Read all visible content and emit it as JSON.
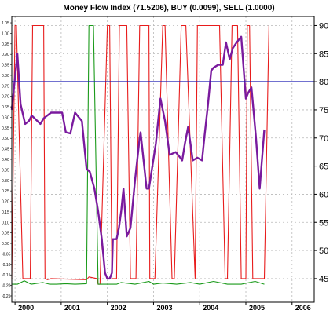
{
  "chart_data": {
    "type": "line",
    "title": "Money Flow Index (71.5206), BUY (0.0099), SELL (1.0000)",
    "xlabel": "",
    "ylabel": "",
    "x_ticks": [
      "2000",
      "2001",
      "2002",
      "2003",
      "2004",
      "2005",
      "2006"
    ],
    "x_range": [
      1999.93,
      2006.48
    ],
    "y_right": {
      "range": [
        40.8,
        91.6
      ],
      "ticks": [
        45,
        50,
        55,
        60,
        65,
        70,
        75,
        80,
        85,
        90
      ]
    },
    "y_left": {
      "range": [
        -0.28,
        1.08
      ],
      "ticks": [
        "1.05",
        "1.00",
        "0.95",
        "0.90",
        "0.85",
        "0.80",
        "0.75",
        "0.70",
        "0.65",
        "0.60",
        "0.55",
        "0.50",
        "0.45",
        "0.40",
        "0.35",
        "0.30",
        "0.25",
        "0.20",
        "0.15",
        "0.10",
        "0.05",
        "0.00",
        "-0.05",
        "-0.10",
        "-0.15",
        "-0.20",
        "-0.25"
      ]
    },
    "reference_line": {
      "value": 80,
      "axis": "right",
      "color": "#1c1cb4"
    },
    "grid": true,
    "series": [
      {
        "axis": "right",
        "color": "#e81c1c",
        "x": [
          1999.93,
          2000.0,
          2000.03,
          2000.17,
          2000.33,
          2000.38,
          2000.62,
          2000.65,
          2000.7,
          2000.78,
          2001.55,
          2001.6,
          2001.78,
          2001.8,
          2001.84,
          2002.0,
          2002.05,
          2002.1,
          2002.2,
          2002.26,
          2002.42,
          2002.5,
          2002.62,
          2002.7,
          2002.9,
          2002.92,
          2003.03,
          2003.2,
          2003.25,
          2003.4,
          2003.45,
          2003.6,
          2003.7,
          2003.9,
          2003.95,
          2004.43,
          2004.55,
          2004.6,
          2004.7,
          2004.82,
          2004.9,
          2005.0,
          2005.03,
          2005.08,
          2005.15,
          2005.25,
          2005.4,
          2005.5
        ],
        "y": [
          45,
          90,
          90,
          45,
          45,
          90,
          90,
          45,
          44.8,
          45,
          44.8,
          45.3,
          45,
          44,
          44,
          90,
          90,
          45,
          45,
          90,
          90,
          45,
          45,
          90,
          90,
          45,
          45,
          90,
          90,
          45,
          45,
          90,
          90,
          45,
          90,
          90,
          45,
          45,
          90,
          90,
          45,
          45,
          90,
          90,
          45,
          45,
          45,
          90
        ]
      },
      {
        "axis": "right",
        "color": "#1a9a1a",
        "x": [
          1999.93,
          2000.05,
          2000.2,
          2000.35,
          2000.6,
          2000.75,
          2000.9,
          2001.1,
          2001.3,
          2001.55,
          2001.6,
          2001.7,
          2001.8,
          2001.9,
          2001.95,
          2002.2,
          2002.3,
          2002.6,
          2002.9,
          2003.0,
          2003.2,
          2003.5,
          2003.8,
          2004.0,
          2004.3,
          2004.6,
          2004.9,
          2005.2,
          2005.4
        ],
        "y": [
          44,
          44,
          44.6,
          44,
          44.3,
          44,
          44,
          44.1,
          44,
          44.1,
          90,
          90,
          44,
          44,
          44,
          44,
          44.3,
          44,
          44.5,
          44,
          44.2,
          44,
          44.3,
          44,
          44.5,
          44,
          44,
          44.5,
          44
        ]
      },
      {
        "axis": "right",
        "color": "#7a1a9e",
        "x": [
          1999.93,
          2000.05,
          2000.12,
          2000.22,
          2000.3,
          2000.36,
          2000.55,
          2000.62,
          2000.7,
          2000.78,
          2000.88,
          2000.97,
          2001.02,
          2001.1,
          2001.2,
          2001.3,
          2001.45,
          2001.55,
          2001.62,
          2001.72,
          2001.8,
          2001.88,
          2001.95,
          2002.0,
          2002.05,
          2002.1,
          2002.12,
          2002.2,
          2002.25,
          2002.3,
          2002.35,
          2002.42,
          2002.5,
          2002.6,
          2002.7,
          2002.72,
          2002.85,
          2002.9,
          2003.05,
          2003.1,
          2003.15,
          2003.25,
          2003.35,
          2003.48,
          2003.58,
          2003.62,
          2003.68,
          2003.75,
          2003.85,
          2003.95,
          2004.05,
          2004.1,
          2004.18,
          2004.25,
          2004.3,
          2004.4,
          2004.5,
          2004.57,
          2004.65,
          2004.72,
          2004.8,
          2004.9,
          2005.0,
          2005.05,
          2005.12,
          2005.22,
          2005.3,
          2005.4
        ],
        "y": [
          75,
          85,
          76,
          72.5,
          73,
          74,
          72.5,
          73.5,
          74,
          74.5,
          74.5,
          74.5,
          74.5,
          71,
          70.8,
          74.5,
          73,
          64.5,
          64,
          61,
          57,
          52,
          46,
          45,
          45,
          46,
          52,
          52,
          54,
          57,
          61,
          52.5,
          54,
          62.5,
          70,
          71,
          61,
          61,
          69,
          73,
          77,
          73,
          67,
          67.5,
          66.5,
          66,
          69,
          72,
          66,
          66.5,
          66,
          70,
          76,
          82,
          82.5,
          83,
          83,
          87,
          84,
          86,
          87,
          88,
          77,
          78,
          79,
          70,
          61,
          71.5
        ]
      }
    ]
  }
}
